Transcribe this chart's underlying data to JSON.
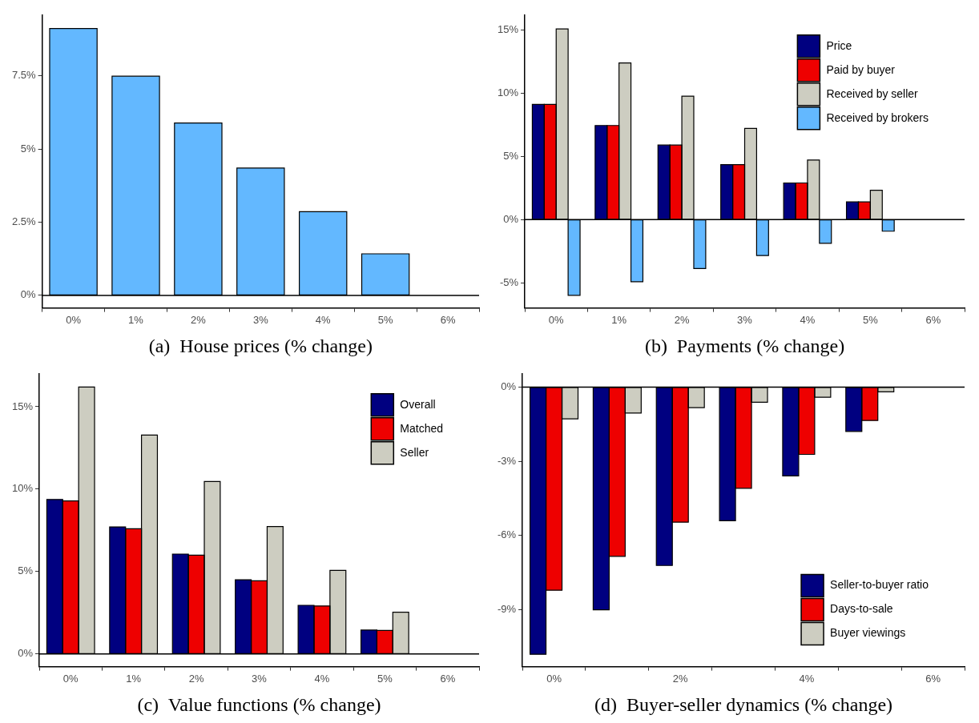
{
  "chart_data": [
    {
      "type": "bar",
      "xlabel": "(a)  House prices (% change)",
      "categories": [
        "0%",
        "1%",
        "2%",
        "3%",
        "4%",
        "5%",
        "6%"
      ],
      "values": [
        9.12,
        7.49,
        5.89,
        4.35,
        2.86,
        1.42,
        0
      ],
      "color": "#63b8ff",
      "ylim": [
        -0.43,
        9.58
      ],
      "yticks": [
        {
          "value": 0,
          "label": "0%"
        },
        {
          "value": 2.5,
          "label": "2.5%"
        },
        {
          "value": 5,
          "label": "5%"
        },
        {
          "value": 7.5,
          "label": "7.5%"
        }
      ],
      "grid": false,
      "legend": false,
      "ref_lines": [
        {
          "axis": "y",
          "value": 0,
          "color": "#000000"
        }
      ]
    },
    {
      "type": "bar",
      "xlabel": "(b)  Payments (% change)",
      "categories": [
        "0%",
        "1%",
        "2%",
        "3%",
        "4%",
        "5%",
        "6%"
      ],
      "series": [
        {
          "name": "Price",
          "color": "#000080",
          "values": [
            9.12,
            7.45,
            5.9,
            4.35,
            2.9,
            1.4,
            0
          ]
        },
        {
          "name": "Paid by buyer",
          "color": "#ee0000",
          "values": [
            9.12,
            7.45,
            5.9,
            4.35,
            2.9,
            1.4,
            0
          ]
        },
        {
          "name": "Received by seller",
          "color": "#cdcdc1",
          "values": [
            15.1,
            12.4,
            9.78,
            7.22,
            4.72,
            2.32,
            0
          ]
        },
        {
          "name": "Received by brokers",
          "color": "#63b8ff",
          "values": [
            -6.0,
            -4.92,
            -3.88,
            -2.85,
            -1.88,
            -0.92,
            0
          ]
        }
      ],
      "ylim": [
        -7.0,
        16.2
      ],
      "yticks": [
        {
          "value": -5,
          "label": "-5%"
        },
        {
          "value": 0,
          "label": "0%"
        },
        {
          "value": 5,
          "label": "5%"
        },
        {
          "value": 10,
          "label": "10%"
        },
        {
          "value": 15,
          "label": "15%"
        }
      ],
      "grid": false,
      "legend": "top right",
      "ref_lines": [
        {
          "axis": "y",
          "value": 0,
          "color": "#000000"
        }
      ]
    },
    {
      "type": "bar",
      "xlabel": "(c)  Value functions (% change)",
      "categories": [
        "0%",
        "1%",
        "2%",
        "3%",
        "4%",
        "5%",
        "6%"
      ],
      "series": [
        {
          "name": "Overall",
          "color": "#000080",
          "values": [
            9.37,
            7.71,
            6.06,
            4.5,
            2.95,
            1.45,
            0
          ]
        },
        {
          "name": "Matched",
          "color": "#ee0000",
          "values": [
            9.28,
            7.6,
            5.99,
            4.44,
            2.91,
            1.43,
            0
          ]
        },
        {
          "name": "Seller",
          "color": "#cdcdc1",
          "values": [
            16.19,
            13.28,
            10.46,
            7.73,
            5.07,
            2.53,
            0
          ]
        }
      ],
      "ylim": [
        -0.77,
        17.0
      ],
      "yticks": [
        {
          "value": 0,
          "label": "0%"
        },
        {
          "value": 5,
          "label": "5%"
        },
        {
          "value": 10,
          "label": "10%"
        },
        {
          "value": 15,
          "label": "15%"
        }
      ],
      "grid": false,
      "legend": "top right",
      "ref_lines": [
        {
          "axis": "y",
          "value": 0,
          "color": "#000000"
        }
      ]
    },
    {
      "type": "bar",
      "xlabel": "(d)  Buyer-seller dynamics (% change)",
      "categories": [
        "0%",
        null,
        "2%",
        null,
        "4%",
        null,
        "6%"
      ],
      "series": [
        {
          "name": "Seller-to-buyer ratio",
          "color": "#000080",
          "values": [
            -10.8,
            -9.0,
            -7.21,
            -5.4,
            -3.59,
            -1.79,
            0
          ]
        },
        {
          "name": "Days-to-sale",
          "color": "#ee0000",
          "values": [
            -8.21,
            -6.84,
            -5.46,
            -4.09,
            -2.72,
            -1.35,
            0
          ]
        },
        {
          "name": "Buyer viewings",
          "color": "#cdcdc1",
          "values": [
            -1.28,
            -1.05,
            -0.83,
            -0.61,
            -0.41,
            -0.19,
            0
          ]
        }
      ],
      "ylim": [
        -11.3,
        0.54
      ],
      "yticks": [
        {
          "value": -9,
          "label": "-9%"
        },
        {
          "value": -6,
          "label": "-6%"
        },
        {
          "value": -3,
          "label": "-3%"
        },
        {
          "value": 0,
          "label": "0%"
        }
      ],
      "grid": false,
      "legend": "bottom right",
      "ref_lines": [
        {
          "axis": "y",
          "value": 0,
          "color": "#000000"
        }
      ]
    }
  ]
}
